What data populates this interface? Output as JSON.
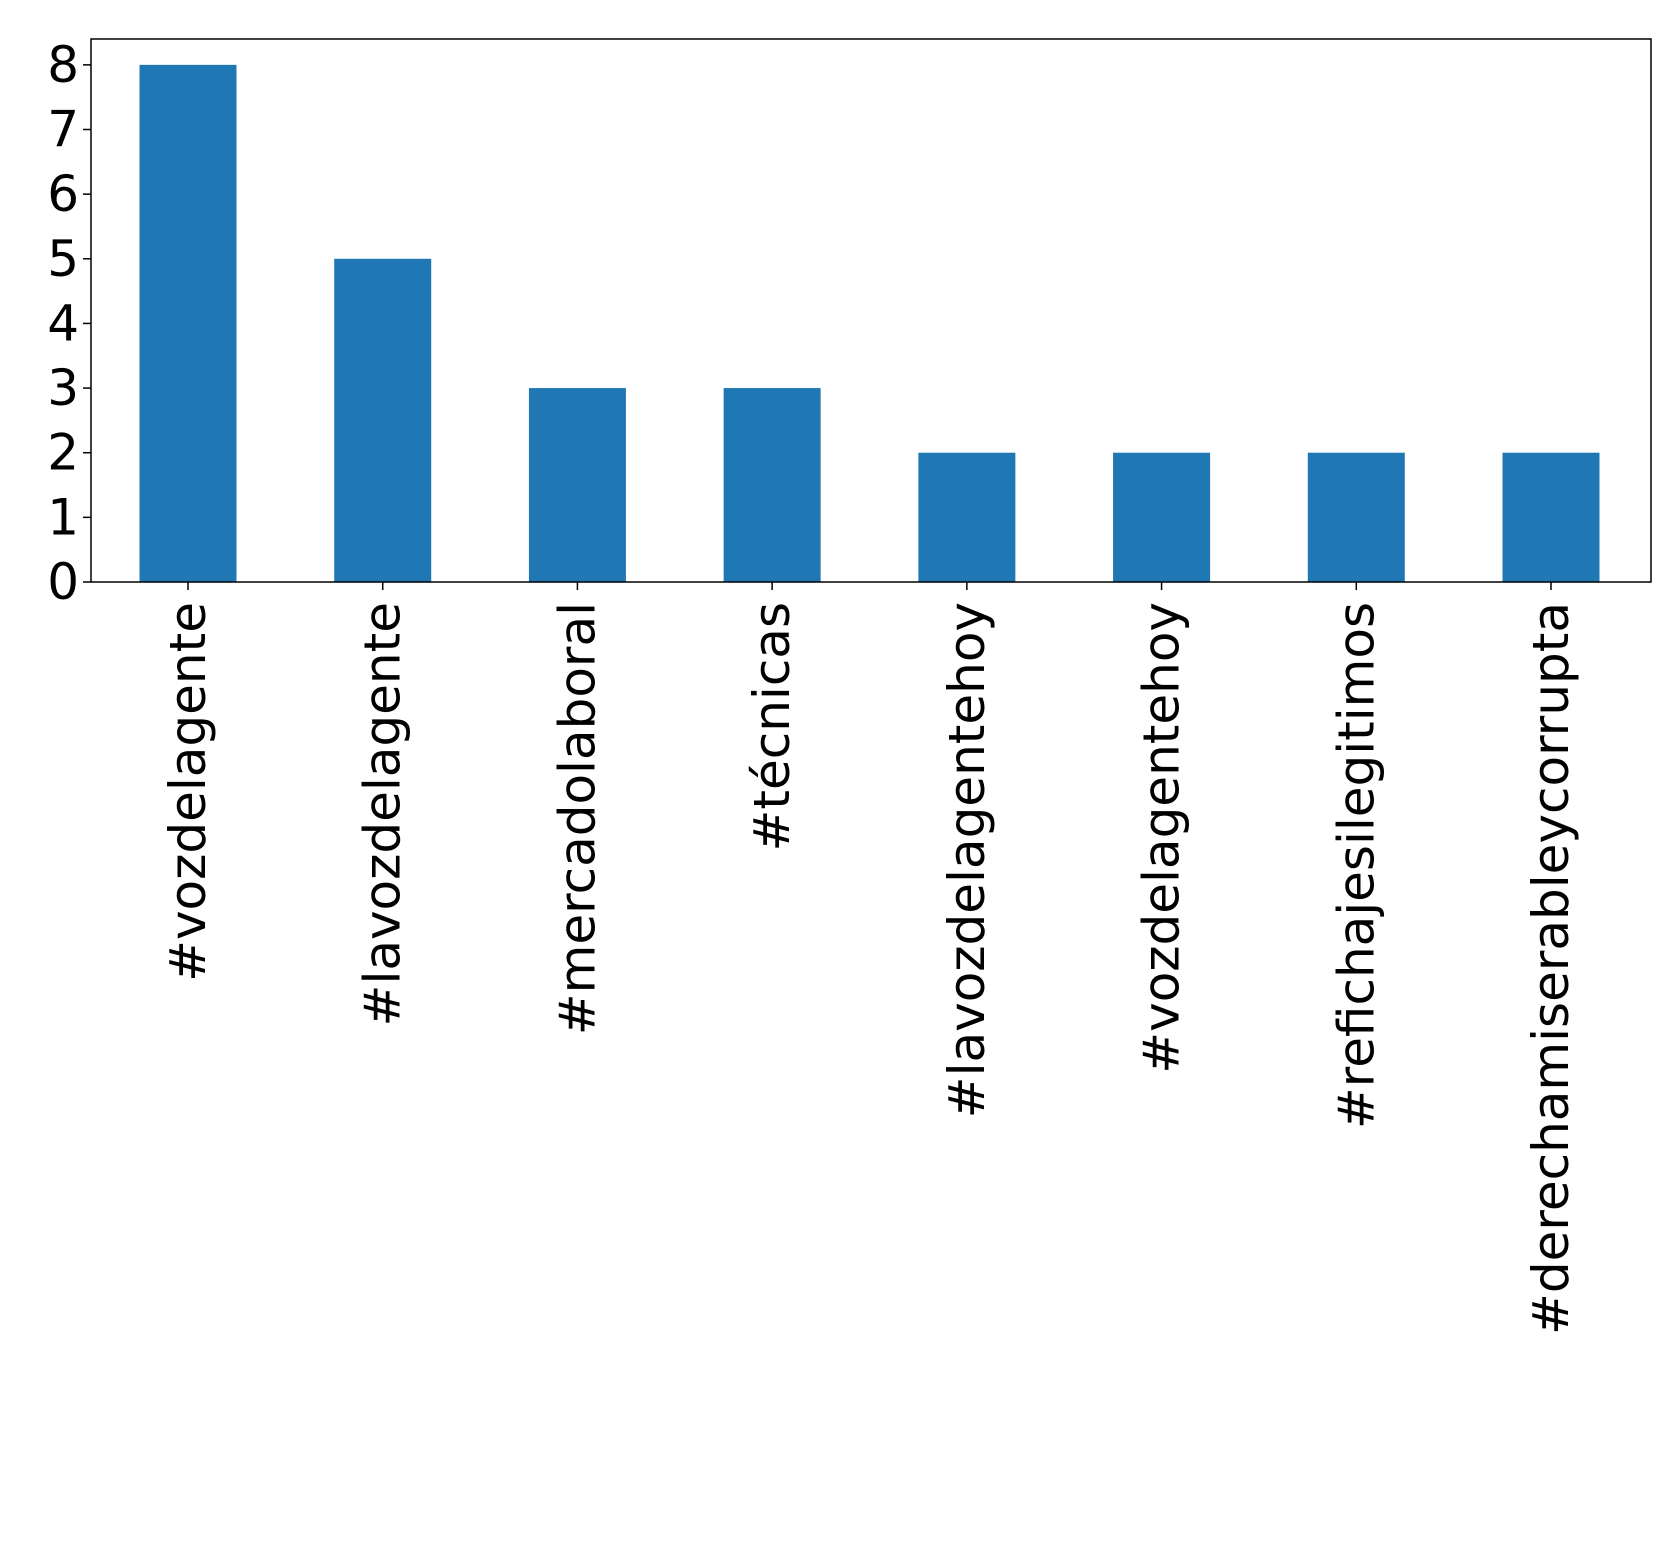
{
  "chart_data": {
    "type": "bar",
    "title": "",
    "xlabel": "",
    "ylabel": "",
    "categories": [
      "#vozdelagente",
      "#lavozdelagente",
      "#mercadolaboral",
      "#técnicas",
      "#lavozdelagentehoy",
      "#vozdelagentehoy",
      "#refichajesilegitimos",
      "#derechamiserableycorrupta"
    ],
    "values": [
      8,
      5,
      3,
      3,
      2,
      2,
      2,
      2
    ],
    "ylim": [
      0,
      8.4
    ],
    "yticks": [
      0,
      1,
      2,
      3,
      4,
      5,
      6,
      7,
      8
    ],
    "grid": false,
    "legend": "none",
    "bar_color": "#1f77b4"
  }
}
